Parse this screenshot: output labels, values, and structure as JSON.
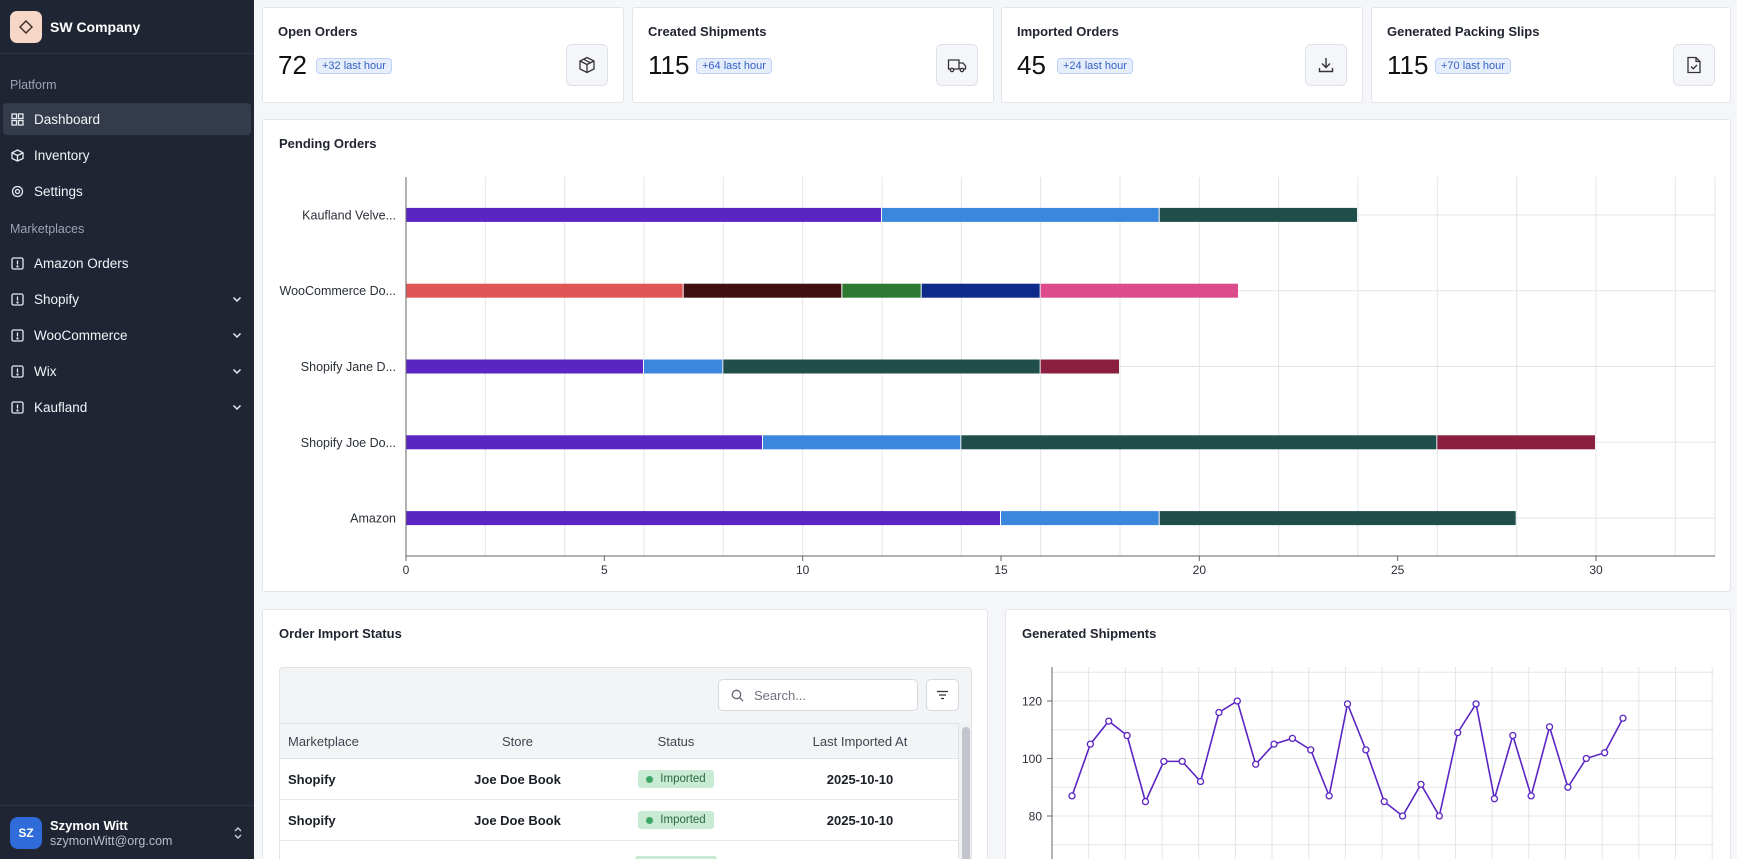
{
  "app": {
    "company": "SW Company"
  },
  "sidebar": {
    "groups": [
      {
        "label": "Platform",
        "items": [
          {
            "label": "Dashboard",
            "icon": "dashboard-icon",
            "active": true
          },
          {
            "label": "Inventory",
            "icon": "box-icon"
          },
          {
            "label": "Settings",
            "icon": "gear-icon"
          }
        ]
      },
      {
        "label": "Marketplaces",
        "items": [
          {
            "label": "Amazon Orders",
            "icon": "marketplace-icon"
          },
          {
            "label": "Shopify",
            "icon": "marketplace-icon",
            "expandable": true
          },
          {
            "label": "WooCommerce",
            "icon": "marketplace-icon",
            "expandable": true
          },
          {
            "label": "Wix",
            "icon": "marketplace-icon",
            "expandable": true
          },
          {
            "label": "Kaufland",
            "icon": "marketplace-icon",
            "expandable": true
          }
        ]
      }
    ]
  },
  "user": {
    "initials": "SZ",
    "name": "Szymon Witt",
    "email": "szymonWitt@org.com"
  },
  "stats": [
    {
      "title": "Open Orders",
      "value": "72",
      "delta": "+32 last hour",
      "icon": "package-icon"
    },
    {
      "title": "Created Shipments",
      "value": "115",
      "delta": "+64 last hour",
      "icon": "truck-icon"
    },
    {
      "title": "Imported Orders",
      "value": "45",
      "delta": "+24 last hour",
      "icon": "download-icon"
    },
    {
      "title": "Generated Packing Slips",
      "value": "115",
      "delta": "+70 last hour",
      "icon": "file-check-icon"
    }
  ],
  "pending": {
    "title": "Pending Orders"
  },
  "order_import": {
    "title": "Order Import Status",
    "search_placeholder": "Search...",
    "columns": [
      "Marketplace",
      "Store",
      "Status",
      "Last Imported At"
    ],
    "rows": [
      {
        "marketplace": "Shopify",
        "store": "Joe Doe Book",
        "status": "Imported",
        "last": "2025-10-10"
      },
      {
        "marketplace": "Shopify",
        "store": "Joe Doe Book",
        "status": "Imported",
        "last": "2025-10-10"
      },
      {
        "marketplace": "",
        "store": "",
        "status": "",
        "last": ""
      }
    ]
  },
  "shipments": {
    "title": "Generated Shipments"
  },
  "chart_data": [
    {
      "type": "bar",
      "orientation": "horizontal",
      "stacked": true,
      "categories": [
        "Kaufland Velve...",
        "WooCommerce Do...",
        "Shopify Jane D...",
        "Shopify Joe Do...",
        "Amazon"
      ],
      "segments": [
        [
          {
            "value": 12,
            "color": "#5b25c4"
          },
          {
            "value": 7,
            "color": "#3b87de"
          },
          {
            "value": 5,
            "color": "#1f4e4b"
          }
        ],
        [
          {
            "value": 7,
            "color": "#e05656"
          },
          {
            "value": 4,
            "color": "#3f0f12"
          },
          {
            "value": 2,
            "color": "#2f7a32"
          },
          {
            "value": 3,
            "color": "#0e2a8a"
          },
          {
            "value": 5,
            "color": "#dc4c8c"
          }
        ],
        [
          {
            "value": 6,
            "color": "#5b25c4"
          },
          {
            "value": 2,
            "color": "#3b87de"
          },
          {
            "value": 8,
            "color": "#1f4e4b"
          },
          {
            "value": 2,
            "color": "#8a1f40"
          }
        ],
        [
          {
            "value": 9,
            "color": "#5b25c4"
          },
          {
            "value": 5,
            "color": "#3b87de"
          },
          {
            "value": 12,
            "color": "#1f4e4b"
          },
          {
            "value": 4,
            "color": "#8a1f40"
          }
        ],
        [
          {
            "value": 15,
            "color": "#5b25c4"
          },
          {
            "value": 4,
            "color": "#3b87de"
          },
          {
            "value": 9,
            "color": "#1f4e4b"
          }
        ]
      ],
      "xlim": [
        0,
        33
      ],
      "xticks": [
        0,
        5,
        10,
        15,
        20,
        25,
        30
      ],
      "grid": true
    },
    {
      "type": "line",
      "color": "#5b25c4",
      "values": [
        87,
        105,
        113,
        108,
        85,
        99,
        99,
        92,
        116,
        120,
        98,
        105,
        107,
        103,
        87,
        119,
        103,
        85,
        80,
        91,
        80,
        109,
        119,
        86,
        108,
        87,
        111,
        90,
        100,
        102,
        114
      ],
      "yticks": [
        80,
        100,
        120
      ],
      "grid": true
    }
  ]
}
